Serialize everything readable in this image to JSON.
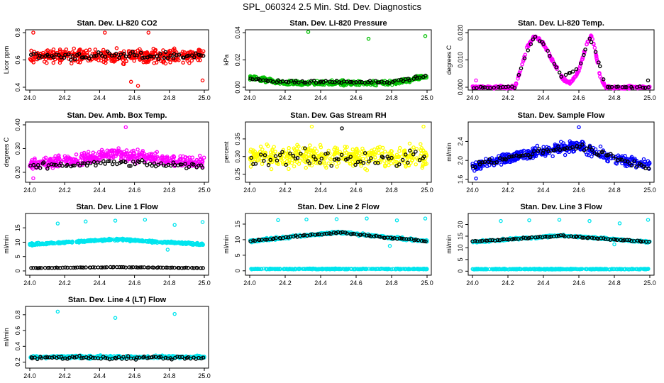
{
  "figure": {
    "title": "SPL_060324  2.5 Min. Std. Dev. Diagnostics"
  },
  "chart_data": [
    {
      "type": "scatter",
      "title": "Stan. Dev. Li-820 CO2",
      "xlabel": "",
      "ylabel": "Licor ppm",
      "xlim": [
        24.0,
        25.0
      ],
      "ylim": [
        0.4,
        0.8
      ],
      "xticks": [
        "24.0",
        "24.2",
        "24.4",
        "24.6",
        "24.8",
        "25.0"
      ],
      "yticks": [
        "0.4",
        "0.6",
        "0.8"
      ],
      "color": "#ff0000",
      "pattern": {
        "kind": "band",
        "base": [
          [
            0,
            0.63
          ],
          [
            1,
            0.63
          ]
        ],
        "spread": 0.07,
        "n": 420,
        "outliers": [
          [
            24.02,
            0.8
          ],
          [
            24.58,
            0.44
          ],
          [
            24.62,
            0.41
          ],
          [
            24.99,
            0.45
          ],
          [
            24.68,
            0.8
          ],
          [
            24.43,
            0.8
          ]
        ]
      },
      "black_pattern": {
        "base": [
          [
            0,
            0.63
          ],
          [
            1,
            0.63
          ]
        ],
        "spread": 0.04,
        "n": 75
      }
    },
    {
      "type": "scatter",
      "title": "Stan. Dev. Li-820 Pressure",
      "xlabel": "",
      "ylabel": "kPa",
      "xlim": [
        24.0,
        25.0
      ],
      "ylim": [
        0.0,
        0.04
      ],
      "xticks": [
        "24.0",
        "24.2",
        "24.4",
        "24.6",
        "24.8",
        "25.0"
      ],
      "yticks": [
        "0.00",
        "0.02",
        "0.04"
      ],
      "color": "#00c000",
      "pattern": {
        "kind": "band",
        "base": [
          [
            0,
            0.007
          ],
          [
            0.2,
            0.003
          ],
          [
            0.8,
            0.003
          ],
          [
            1,
            0.008
          ]
        ],
        "spread": 0.0025,
        "n": 420,
        "outliers": [
          [
            24.33,
            0.0405
          ],
          [
            24.67,
            0.0355
          ],
          [
            24.99,
            0.0375
          ]
        ]
      },
      "black_pattern": {
        "base": [
          [
            0,
            0.006
          ],
          [
            0.2,
            0.004
          ],
          [
            0.8,
            0.004
          ],
          [
            1,
            0.008
          ]
        ],
        "spread": 0.0015,
        "n": 70
      }
    },
    {
      "type": "scatter",
      "title": "Stan. Dev. Li-820 Temp.",
      "xlabel": "",
      "ylabel": "degrees C",
      "xlim": [
        24.0,
        25.0
      ],
      "ylim": [
        0.0,
        0.02
      ],
      "xticks": [
        "24.0",
        "24.2",
        "24.4",
        "24.6",
        "24.8",
        "25.0"
      ],
      "yticks": [
        "0.000",
        "0.010",
        "0.020"
      ],
      "color": "#ff00ff",
      "pattern": {
        "kind": "band",
        "base": [
          [
            0,
            0.0
          ],
          [
            0.24,
            0.0
          ],
          [
            0.27,
            0.006
          ],
          [
            0.31,
            0.015
          ],
          [
            0.35,
            0.0185
          ],
          [
            0.39,
            0.017
          ],
          [
            0.44,
            0.011
          ],
          [
            0.51,
            0.003
          ],
          [
            0.55,
            0.0015
          ],
          [
            0.6,
            0.006
          ],
          [
            0.64,
            0.015
          ],
          [
            0.67,
            0.019
          ],
          [
            0.69,
            0.014
          ],
          [
            0.72,
            0.004
          ],
          [
            0.75,
            0.0
          ],
          [
            1,
            0.0
          ]
        ],
        "spread": 0.0008,
        "n": 400,
        "outliers": [
          [
            24.02,
            0.0025
          ]
        ]
      },
      "black_pattern": {
        "base": [
          [
            0,
            0.0
          ],
          [
            0.24,
            0.0
          ],
          [
            0.3,
            0.012
          ],
          [
            0.35,
            0.0185
          ],
          [
            0.4,
            0.016
          ],
          [
            0.5,
            0.004
          ],
          [
            0.6,
            0.007
          ],
          [
            0.66,
            0.018
          ],
          [
            0.7,
            0.012
          ],
          [
            0.75,
            0.0
          ],
          [
            1,
            0.0
          ]
        ],
        "spread": 0.0006,
        "n": 60,
        "outliers": [
          [
            24.99,
            0.0025
          ]
        ]
      }
    },
    {
      "type": "scatter",
      "title": "Stan. Dev. Amb. Box Temp.",
      "xlabel": "",
      "ylabel": "degrees C",
      "xlim": [
        24.0,
        25.0
      ],
      "ylim": [
        0.17,
        0.4
      ],
      "xticks": [
        "24.0",
        "24.2",
        "24.4",
        "24.6",
        "24.8",
        "25.0"
      ],
      "yticks": [
        "0.20",
        "0.30",
        "0.40"
      ],
      "color": "#ff00ff",
      "pattern": {
        "kind": "band",
        "base": [
          [
            0,
            0.235
          ],
          [
            0.25,
            0.25
          ],
          [
            0.5,
            0.28
          ],
          [
            0.7,
            0.26
          ],
          [
            1,
            0.24
          ]
        ],
        "spread": 0.035,
        "n": 420,
        "outliers": [
          [
            24.55,
            0.39
          ],
          [
            24.02,
            0.175
          ]
        ]
      },
      "black_pattern": {
        "base": [
          [
            0,
            0.225
          ],
          [
            0.5,
            0.24
          ],
          [
            1,
            0.225
          ]
        ],
        "spread": 0.018,
        "n": 75
      }
    },
    {
      "type": "scatter",
      "title": "Stan. Dev. Gas Stream RH",
      "xlabel": "",
      "ylabel": "percent",
      "xlim": [
        24.0,
        25.0
      ],
      "ylim": [
        0.235,
        0.39
      ],
      "xticks": [
        "24.0",
        "24.2",
        "24.4",
        "24.6",
        "24.8",
        "25.0"
      ],
      "yticks": [
        "0.25",
        "0.30",
        "0.35"
      ],
      "color": "#ffff00",
      "pattern": {
        "kind": "band",
        "base": [
          [
            0,
            0.3
          ],
          [
            1,
            0.3
          ]
        ],
        "spread": 0.045,
        "n": 420,
        "outliers": [
          [
            24.35,
            0.385
          ],
          [
            24.98,
            0.385
          ]
        ]
      },
      "black_pattern": {
        "base": [
          [
            0,
            0.295
          ],
          [
            1,
            0.295
          ]
        ],
        "spread": 0.035,
        "n": 60,
        "outliers": [
          [
            24.52,
            0.38
          ]
        ]
      }
    },
    {
      "type": "scatter",
      "title": "Stan. Dev. Sample Flow",
      "xlabel": "",
      "ylabel": "ml/min",
      "xlim": [
        24.0,
        25.0
      ],
      "ylim": [
        1.6,
        2.75
      ],
      "xticks": [
        "24.0",
        "24.2",
        "24.4",
        "24.6",
        "24.8",
        "25.0"
      ],
      "yticks": [
        "1.6",
        "2.0",
        "2.4"
      ],
      "color": "#0000ff",
      "pattern": {
        "kind": "band",
        "base": [
          [
            0,
            1.85
          ],
          [
            0.2,
            2.05
          ],
          [
            0.4,
            2.2
          ],
          [
            0.6,
            2.3
          ],
          [
            0.8,
            2.05
          ],
          [
            1,
            1.9
          ]
        ],
        "spread": 0.17,
        "n": 420,
        "outliers": [
          [
            24.6,
            2.7
          ],
          [
            24.02,
            1.62
          ]
        ]
      },
      "black_pattern": {
        "base": [
          [
            0,
            1.9
          ],
          [
            0.2,
            2.05
          ],
          [
            0.4,
            2.2
          ],
          [
            0.6,
            2.3
          ],
          [
            0.8,
            2.05
          ],
          [
            1,
            1.85
          ]
        ],
        "spread": 0.1,
        "n": 75
      }
    },
    {
      "type": "scatter",
      "title": "Stan. Dev. Line 1 Flow",
      "xlabel": "",
      "ylabel": "ml/min",
      "xlim": [
        24.0,
        25.0
      ],
      "ylim": [
        -0.5,
        19
      ],
      "xticks": [
        "24.0",
        "24.2",
        "24.4",
        "24.6",
        "24.8",
        "25.0"
      ],
      "yticks": [
        "0",
        "5",
        "10",
        "15"
      ],
      "color": "#00e5ee",
      "pattern": {
        "kind": "band",
        "base": [
          [
            0,
            9.2
          ],
          [
            0.5,
            11.0
          ],
          [
            1,
            9.2
          ]
        ],
        "spread": 0.5,
        "n": 420,
        "outliers": [
          [
            24.16,
            16.5
          ],
          [
            24.32,
            17.2
          ],
          [
            24.49,
            17.5
          ],
          [
            24.66,
            17.8
          ],
          [
            24.83,
            16.0
          ],
          [
            24.99,
            17.0
          ],
          [
            24.79,
            7.4
          ]
        ]
      },
      "black_pattern": {
        "base": [
          [
            0,
            1.0
          ],
          [
            0.5,
            1.3
          ],
          [
            1,
            1.0
          ]
        ],
        "spread": 0.12,
        "n": 75
      }
    },
    {
      "type": "scatter",
      "title": "Stan. Dev. Line 2 Flow",
      "xlabel": "",
      "ylabel": "ml/min",
      "xlim": [
        24.0,
        25.0
      ],
      "ylim": [
        -0.5,
        17.5
      ],
      "xticks": [
        "24.0",
        "24.2",
        "24.4",
        "24.6",
        "24.8",
        "25.0"
      ],
      "yticks": [
        "0",
        "5",
        "10",
        "15"
      ],
      "color": "#00e5ee",
      "pattern": {
        "kind": "band",
        "base": [
          [
            0,
            9.5
          ],
          [
            0.5,
            12.4
          ],
          [
            1,
            9.5
          ]
        ],
        "spread": 0.6,
        "n": 420,
        "outliers": [
          [
            24.16,
            16.3
          ],
          [
            24.32,
            16.5
          ],
          [
            24.49,
            16.6
          ],
          [
            24.66,
            16.8
          ],
          [
            24.83,
            16.2
          ],
          [
            24.99,
            16.8
          ],
          [
            24.79,
            8.0
          ]
        ]
      },
      "black_pattern": {
        "base": [
          [
            0,
            9.6
          ],
          [
            0.5,
            12.3
          ],
          [
            1,
            9.5
          ]
        ],
        "spread": 0.4,
        "n": 75
      },
      "low_band": {
        "level": 0.6,
        "spread": 0.2,
        "n": 300
      }
    },
    {
      "type": "scatter",
      "title": "Stan. Dev. Line 3 Flow",
      "xlabel": "",
      "ylabel": "ml/min",
      "xlim": [
        24.0,
        25.0
      ],
      "ylim": [
        -0.5,
        23.5
      ],
      "xticks": [
        "24.0",
        "24.2",
        "24.4",
        "24.6",
        "24.8",
        "25.0"
      ],
      "yticks": [
        "0",
        "5",
        "10",
        "15",
        "20"
      ],
      "color": "#00e5ee",
      "pattern": {
        "kind": "band",
        "base": [
          [
            0,
            12.5
          ],
          [
            0.5,
            15.3
          ],
          [
            1,
            12.5
          ]
        ],
        "spread": 0.6,
        "n": 420,
        "outliers": [
          [
            24.16,
            21.5
          ],
          [
            24.32,
            21.8
          ],
          [
            24.49,
            22.0
          ],
          [
            24.66,
            21.5
          ],
          [
            24.83,
            20.5
          ],
          [
            24.99,
            22.0
          ],
          [
            24.8,
            11.5
          ]
        ]
      },
      "black_pattern": {
        "base": [
          [
            0,
            12.6
          ],
          [
            0.5,
            15.2
          ],
          [
            1,
            12.5
          ]
        ],
        "spread": 0.4,
        "n": 75
      },
      "low_band": {
        "level": 0.9,
        "spread": 0.25,
        "n": 300
      }
    },
    {
      "type": "scatter",
      "title": "Stan. Dev. Line 4 (LT) Flow",
      "xlabel": "",
      "ylabel": "ml/min",
      "xlim": [
        24.0,
        25.0
      ],
      "ylim": [
        0.16,
        0.87
      ],
      "xticks": [
        "24.0",
        "24.2",
        "24.4",
        "24.6",
        "24.8",
        "25.0"
      ],
      "yticks": [
        "0.2",
        "0.4",
        "0.6",
        "0.8"
      ],
      "color": "#00e5ee",
      "pattern": {
        "kind": "band",
        "base": [
          [
            0,
            0.265
          ],
          [
            1,
            0.265
          ]
        ],
        "spread": 0.025,
        "n": 420,
        "outliers": [
          [
            24.16,
            0.84
          ],
          [
            24.49,
            0.76
          ],
          [
            24.83,
            0.81
          ]
        ]
      },
      "black_pattern": {
        "base": [
          [
            0,
            0.255
          ],
          [
            1,
            0.255
          ]
        ],
        "spread": 0.035,
        "n": 75
      }
    }
  ]
}
